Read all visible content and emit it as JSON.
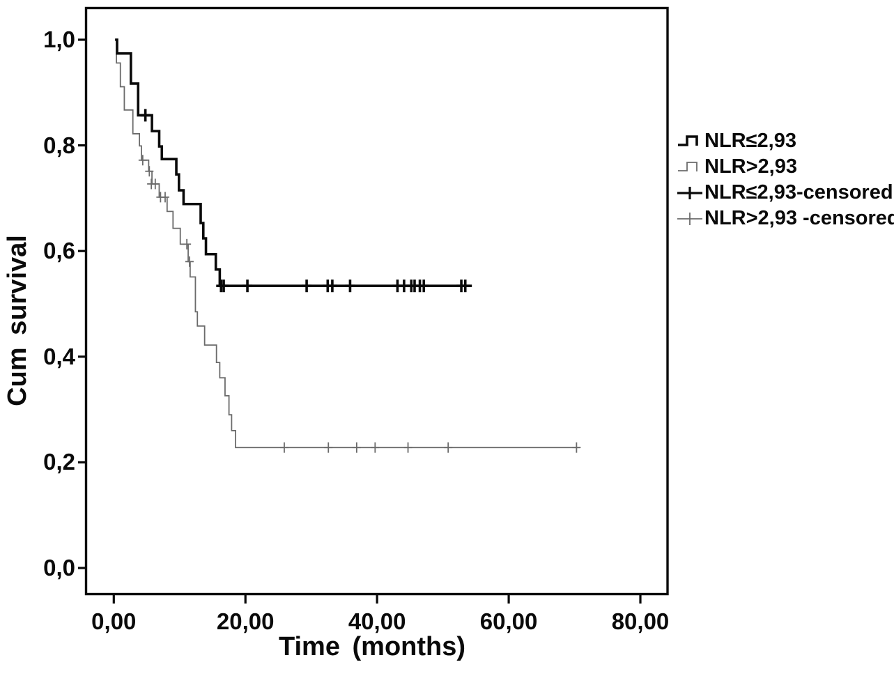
{
  "figure": {
    "title": "",
    "y_axis_title": "Cum survival",
    "x_axis_title": "Time (months)",
    "x_ticks": [
      "0,00",
      "20,00",
      "40,00",
      "60,00",
      "80,00"
    ],
    "y_ticks": [
      "0,0",
      "0,2",
      "0,4",
      "0,6",
      "0,8",
      "1,0"
    ]
  },
  "legend": {
    "items": [
      {
        "label": "NLR≤2,93",
        "type": "step",
        "color": "#0a0a0a",
        "stroke_width": 3.6
      },
      {
        "label": "NLR>2,93",
        "type": "step",
        "color": "#6b6b6b",
        "stroke_width": 1.8
      },
      {
        "label": "NLR≤2,93-censored",
        "type": "plus",
        "color": "#0a0a0a",
        "stroke_width": 3.2
      },
      {
        "label": "NLR>2,93 -censored",
        "type": "plus",
        "color": "#6b6b6b",
        "stroke_width": 1.8
      }
    ]
  },
  "chart_data": {
    "type": "line",
    "subtype": "kaplan-meier-step",
    "title": "",
    "xlabel": "Time (months)",
    "ylabel": "Cum survival",
    "xlim": [
      -4,
      84
    ],
    "ylim": [
      -0.05,
      1.06
    ],
    "x_tick_values": [
      0,
      20,
      40,
      60,
      80
    ],
    "y_tick_values": [
      0.0,
      0.2,
      0.4,
      0.6,
      0.8,
      1.0
    ],
    "grid": false,
    "legend_position": "right-outside",
    "frame_color": "#0a0a0a",
    "series": [
      {
        "name": "NLR≤2,93",
        "color": "#0a0a0a",
        "line_width": 3.6,
        "censor_half_height": 9,
        "censor_half_width": 7,
        "start": [
          0.2,
          1.0
        ],
        "steps": [
          [
            0.5,
            0.974
          ],
          [
            2.6,
            0.917
          ],
          [
            3.7,
            0.857
          ],
          [
            5.8,
            0.827
          ],
          [
            6.9,
            0.798
          ],
          [
            7.3,
            0.774
          ],
          [
            9.5,
            0.745
          ],
          [
            9.9,
            0.715
          ],
          [
            10.6,
            0.689
          ],
          [
            13.2,
            0.653
          ],
          [
            13.6,
            0.624
          ],
          [
            14.0,
            0.594
          ],
          [
            15.5,
            0.565
          ],
          [
            16.1,
            0.534
          ]
        ],
        "end_time": 54.4,
        "censored": [
          [
            4.8,
            0.857
          ],
          [
            16.3,
            0.534
          ],
          [
            16.7,
            0.534
          ],
          [
            20.3,
            0.534
          ],
          [
            29.3,
            0.534
          ],
          [
            32.5,
            0.534
          ],
          [
            33.2,
            0.534
          ],
          [
            35.9,
            0.534
          ],
          [
            43.1,
            0.534
          ],
          [
            44.1,
            0.534
          ],
          [
            45.2,
            0.534
          ],
          [
            45.7,
            0.534
          ],
          [
            46.5,
            0.534
          ],
          [
            47.1,
            0.534
          ],
          [
            52.8,
            0.534
          ],
          [
            53.4,
            0.534
          ]
        ]
      },
      {
        "name": "NLR>2,93",
        "color": "#6b6b6b",
        "line_width": 1.8,
        "censor_half_height": 7.5,
        "censor_half_width": 6,
        "start": [
          0.2,
          1.0
        ],
        "steps": [
          [
            0.4,
            0.956
          ],
          [
            1.0,
            0.911
          ],
          [
            1.6,
            0.867
          ],
          [
            2.9,
            0.822
          ],
          [
            3.9,
            0.799
          ],
          [
            4.2,
            0.772
          ],
          [
            5.3,
            0.751
          ],
          [
            5.8,
            0.727
          ],
          [
            6.9,
            0.702
          ],
          [
            8.1,
            0.675
          ],
          [
            9.0,
            0.643
          ],
          [
            10.1,
            0.613
          ],
          [
            11.3,
            0.58
          ],
          [
            11.6,
            0.551
          ],
          [
            12.4,
            0.485
          ],
          [
            12.7,
            0.458
          ],
          [
            13.8,
            0.422
          ],
          [
            15.6,
            0.389
          ],
          [
            16.1,
            0.36
          ],
          [
            16.9,
            0.326
          ],
          [
            17.5,
            0.29
          ],
          [
            17.9,
            0.26
          ],
          [
            18.5,
            0.228
          ]
        ],
        "end_time": 70.8,
        "censored": [
          [
            4.4,
            0.772
          ],
          [
            5.4,
            0.751
          ],
          [
            5.7,
            0.727
          ],
          [
            6.3,
            0.727
          ],
          [
            7.1,
            0.702
          ],
          [
            7.8,
            0.702
          ],
          [
            11.1,
            0.613
          ],
          [
            11.5,
            0.58
          ],
          [
            25.9,
            0.228
          ],
          [
            32.6,
            0.228
          ],
          [
            36.9,
            0.228
          ],
          [
            39.7,
            0.228
          ],
          [
            44.7,
            0.228
          ],
          [
            50.8,
            0.228
          ],
          [
            70.3,
            0.228
          ]
        ]
      }
    ]
  }
}
